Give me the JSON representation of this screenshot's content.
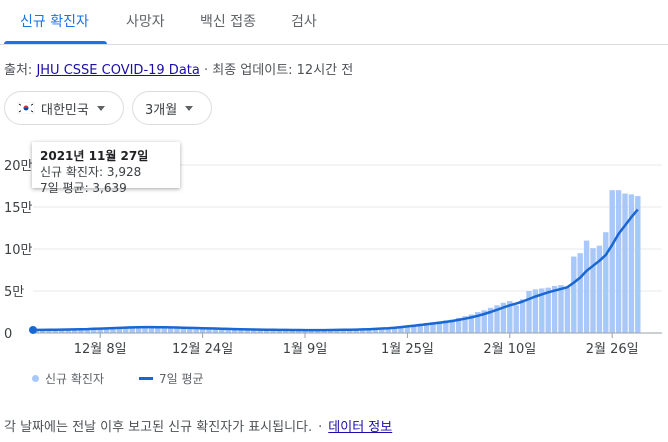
{
  "tabs": [
    {
      "label": "신규 확진자",
      "active": true
    },
    {
      "label": "사망자",
      "active": false
    },
    {
      "label": "백신 접종",
      "active": false
    },
    {
      "label": "검사",
      "active": false
    }
  ],
  "source": {
    "prefix": "출처: ",
    "link": "JHU CSSE COVID-19 Data",
    "suffix": " · 최종 업데이트: 12시간 전"
  },
  "filters": {
    "region": {
      "label": "대한민국",
      "icon": "korea-flag-icon"
    },
    "period": {
      "label": "3개월",
      "icon": "caret-down-icon"
    }
  },
  "tooltip": {
    "date": "2021년 11월 27일",
    "cases": "신규 확진자: 3,928",
    "avg": "7일 평균: 3,639"
  },
  "legend": {
    "bars_label": "신규 확진자",
    "line_label": "7일 평균"
  },
  "footer": {
    "note": "각 날짜에는 전날 이후 보고된 신규 확진자가 표시됩니다.",
    "sep": "·",
    "link": "데이터 정보"
  },
  "colors": {
    "accent": "#1a73e8",
    "bar": "#a8c7fa",
    "line": "#1967d2"
  },
  "chart_data": {
    "type": "bar",
    "y_ticks": [
      "0",
      "5만",
      "10만",
      "15만",
      "20만"
    ],
    "y_tick_values": [
      0,
      50000,
      100000,
      150000,
      200000
    ],
    "x_ticks": [
      "12월 8일",
      "12월 24일",
      "1월 9일",
      "1월 25일",
      "2월 10일",
      "2월 26일"
    ],
    "x_tick_index": [
      10,
      26,
      42,
      58,
      74,
      90
    ],
    "ylim": [
      0,
      200000
    ],
    "grid": true,
    "series": [
      {
        "name": "신규 확진자",
        "kind": "bar",
        "values": [
          3928,
          4000,
          3900,
          4100,
          4200,
          4300,
          4500,
          4700,
          5000,
          5300,
          5600,
          6000,
          6200,
          6500,
          6800,
          7000,
          7100,
          7200,
          7100,
          7000,
          6800,
          6600,
          6400,
          6200,
          6000,
          5800,
          5600,
          5400,
          5200,
          5000,
          4800,
          4600,
          4400,
          4200,
          4000,
          3900,
          3800,
          3800,
          3700,
          3600,
          3500,
          3500,
          3400,
          3400,
          3400,
          3500,
          3600,
          3700,
          3800,
          4000,
          4200,
          4500,
          4800,
          5200,
          5600,
          6200,
          7000,
          8000,
          9000,
          10000,
          11000,
          12000,
          13000,
          14000,
          15000,
          16000,
          18000,
          20000,
          22000,
          25000,
          27000,
          30000,
          33000,
          36000,
          38000,
          33000,
          40000,
          50000,
          52000,
          53000,
          54000,
          56000,
          57000,
          54000,
          91000,
          95000,
          110000,
          101000,
          104000,
          120000,
          170000,
          170000,
          166000,
          165000,
          163000
        ]
      },
      {
        "name": "7일 평균",
        "kind": "line",
        "values": [
          3639,
          3700,
          3800,
          3900,
          4000,
          4150,
          4300,
          4500,
          4700,
          4950,
          5200,
          5500,
          5800,
          6100,
          6400,
          6700,
          6900,
          7000,
          7000,
          6950,
          6850,
          6700,
          6500,
          6300,
          6100,
          5900,
          5700,
          5500,
          5300,
          5100,
          4900,
          4700,
          4500,
          4300,
          4150,
          4000,
          3900,
          3800,
          3700,
          3650,
          3600,
          3550,
          3500,
          3450,
          3450,
          3500,
          3550,
          3650,
          3750,
          3900,
          4050,
          4300,
          4550,
          4900,
          5300,
          5750,
          6300,
          7000,
          7800,
          8600,
          9500,
          10400,
          11300,
          12200,
          13200,
          14300,
          15600,
          17000,
          18600,
          20500,
          22600,
          25000,
          27600,
          30300,
          33000,
          35000,
          37500,
          40500,
          43500,
          46000,
          48500,
          50500,
          52500,
          54500,
          60000,
          66000,
          74000,
          80000,
          86000,
          93000,
          105000,
          118000,
          128000,
          138000,
          147000
        ]
      }
    ]
  }
}
